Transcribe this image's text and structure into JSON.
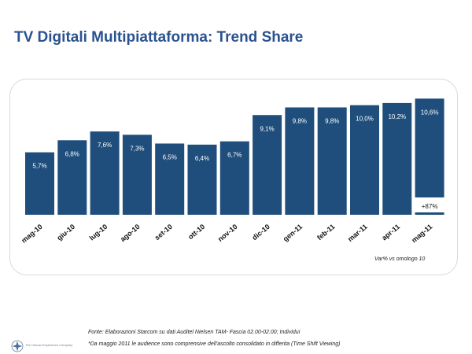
{
  "title": "TV Digitali Multipiattaforma: Trend Share",
  "chart_data": {
    "type": "bar",
    "categories": [
      "mag-10",
      "giu-10",
      "lug-10",
      "ago-10",
      "set-10",
      "ott-10",
      "nov-10",
      "dic-10",
      "gen-11",
      "feb-11",
      "mar-11",
      "apr-11",
      "mag-11"
    ],
    "values": [
      5.7,
      6.8,
      7.6,
      7.3,
      6.5,
      6.4,
      6.7,
      9.1,
      9.8,
      9.8,
      10.0,
      10.2,
      10.6
    ],
    "value_labels": [
      "5,7%",
      "6,8%",
      "7,6%",
      "7,3%",
      "6,5%",
      "6,4%",
      "6,7%",
      "9,1%",
      "9,8%",
      "9,8%",
      "10,0%",
      "10,2%",
      "10,6%"
    ],
    "annotation": {
      "category": "mag-11",
      "text": "+87%"
    },
    "ylim": [
      0,
      11.2
    ],
    "bar_color": "#1f4e7c",
    "xlabel": "",
    "ylabel": ""
  },
  "note": "Var% vs omologo 10",
  "source": "Fonte: Elaborazioni Starcom su dati Auditel Nielsen TAM- Fascia 02.00-02.00; Individui",
  "footnote": "*Da maggio 2011 le audience sono comprensive dell'ascolto consolidato in differita (Time Shift Viewing)",
  "logo": {
    "icon": "star-emblem-icon",
    "text": "The Human Experience Company"
  }
}
